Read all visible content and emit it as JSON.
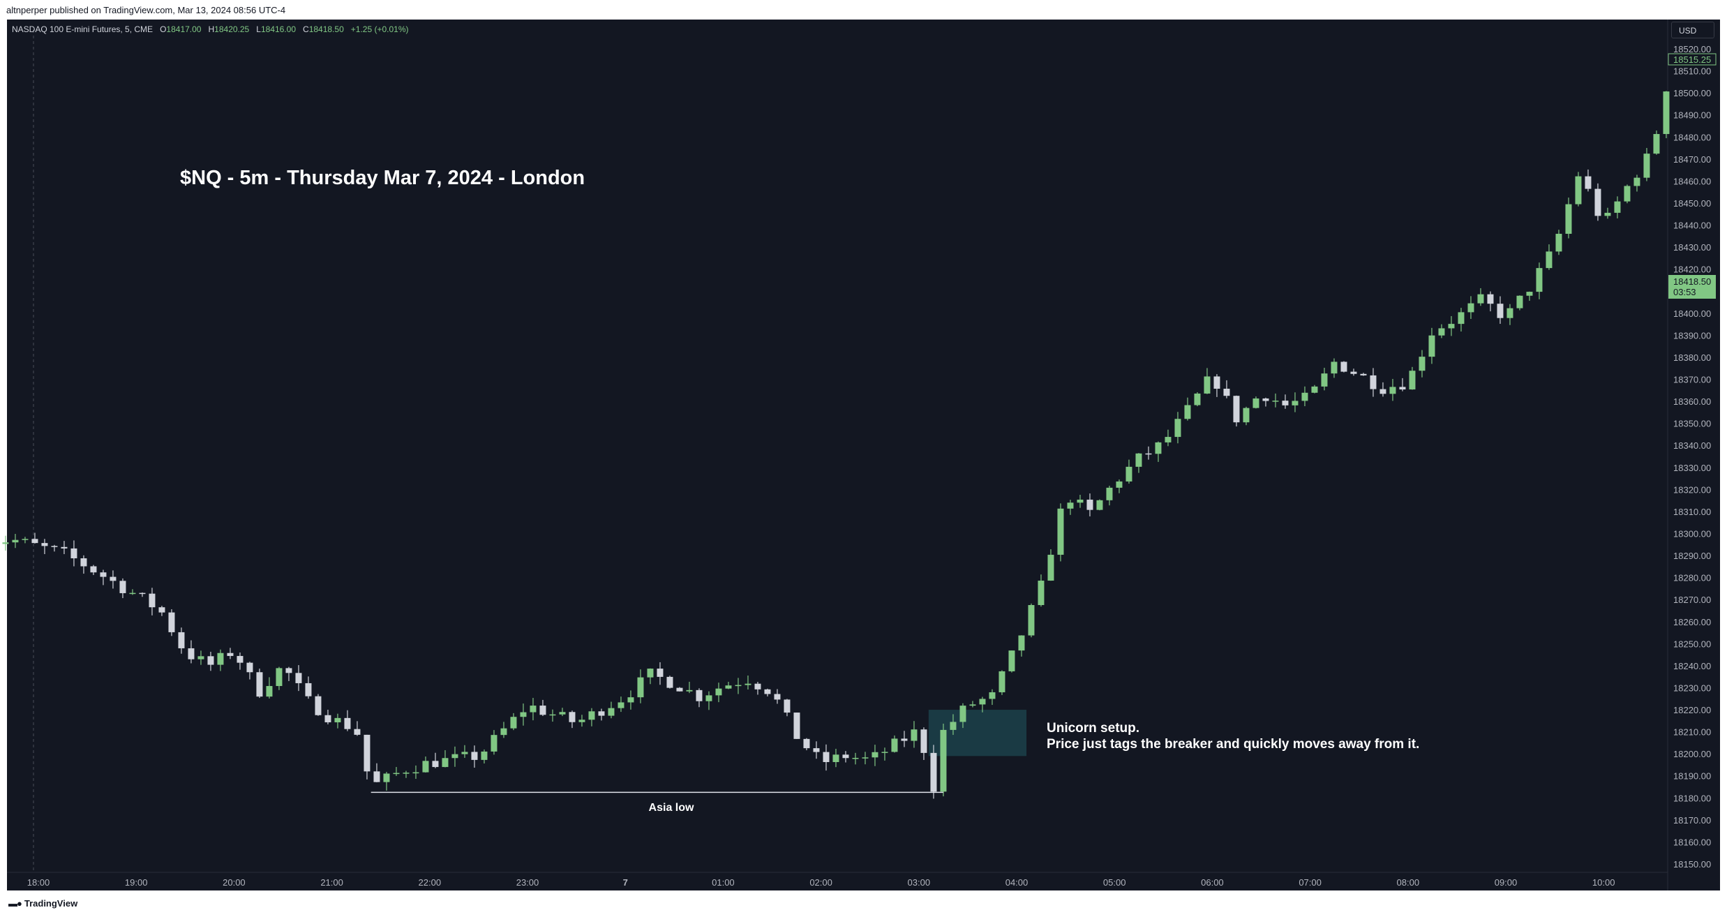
{
  "header": {
    "published": "altnperper published on TradingView.com, Mar 13, 2024 08:56 UTC-4"
  },
  "legend": {
    "symbol": "NASDAQ 100 E-mini Futures, 5, CME",
    "o_label": "O",
    "o_value": "18417.00",
    "h_label": "H",
    "h_value": "18420.25",
    "l_label": "L",
    "l_value": "18416.00",
    "c_label": "C",
    "c_value": "18418.50",
    "change": "+1.25 (+0.01%)"
  },
  "currency": "USD",
  "footer": {
    "brand": "TradingView"
  },
  "colors": {
    "background": "#131722",
    "up": "#81c784",
    "down": "#d1d4dc",
    "fvg": "#1a3a44",
    "last_price": "#81c784"
  },
  "chart_data": {
    "type": "candlestick",
    "title": "$NQ - 5m - Thursday Mar 7, 2024 - London",
    "timeframe": "5m",
    "x_ticks": [
      "18:00",
      "19:00",
      "20:00",
      "21:00",
      "22:00",
      "23:00",
      "7",
      "01:00",
      "02:00",
      "03:00",
      "04:00",
      "05:00",
      "06:00",
      "07:00",
      "08:00",
      "09:00",
      "10:00"
    ],
    "y_ticks": [
      18150,
      18160,
      18170,
      18180,
      18190,
      18200,
      18210,
      18220,
      18230,
      18240,
      18250,
      18260,
      18270,
      18280,
      18290,
      18300,
      18310,
      18320,
      18330,
      18340,
      18350,
      18360,
      18370,
      18380,
      18390,
      18400,
      18410,
      18420,
      18430,
      18440,
      18450,
      18460,
      18470,
      18480,
      18490,
      18500,
      18510,
      18520
    ],
    "ylim": [
      18143,
      18525
    ],
    "y_tick_labels": [
      "18150.00",
      "18160.00",
      "18170.00",
      "18180.00",
      "18190.00",
      "18200.00",
      "18210.00",
      "18220.00",
      "18230.00",
      "18240.00",
      "18250.00",
      "18260.00",
      "18270.00",
      "18280.00",
      "18290.00",
      "18300.00",
      "18310.00",
      "18320.00",
      "18330.00",
      "18340.00",
      "18350.00",
      "18360.00",
      "18370.00",
      "18380.00",
      "18390.00",
      "18400.00",
      "18410.00",
      "18420.00",
      "18430.00",
      "18440.00",
      "18450.00",
      "18460.00",
      "18470.00",
      "18480.00",
      "18490.00",
      "18500.00",
      "18510.00",
      "18520.00"
    ],
    "price_labels": {
      "high_value": "18515.25",
      "last_price": "18418.50",
      "countdown": "03:53"
    },
    "levels": [
      {
        "name": "Asia low",
        "price": 18182.5,
        "from_hour": 21.4,
        "to_hour": 3.25
      }
    ],
    "zones": [
      {
        "name": "breaker",
        "top": 18220,
        "bottom": 18199,
        "from_hour": 3.1,
        "to_hour": 4.1
      }
    ],
    "annotations": [
      "Unicorn setup.",
      "Price just tags the breaker and quickly moves away from it."
    ],
    "series": [
      {
        "name": "",
        "kind": "close",
        "x_hours": [
          17.75,
          18.25,
          18.5,
          19.0,
          19.25,
          19.5,
          19.75,
          20.0,
          20.25,
          20.5,
          20.75,
          21.0,
          21.25,
          21.4,
          21.75,
          22.0,
          22.5,
          23.0,
          23.5,
          0.0,
          0.25,
          0.5,
          0.75,
          1.0,
          1.25,
          1.5,
          1.75,
          2.0,
          2.25,
          2.5,
          2.75,
          3.0,
          3.15,
          3.25,
          3.5,
          3.75,
          4.0,
          4.25,
          4.5,
          4.75,
          5.0,
          5.25,
          5.5,
          5.75,
          6.0,
          6.25,
          6.5,
          6.75,
          7.0,
          7.25,
          7.5,
          7.75,
          8.0,
          8.25,
          8.5,
          8.75,
          9.0,
          9.25,
          9.5,
          9.75,
          10.0,
          10.25,
          10.5,
          10.7
        ],
        "values": [
          18297,
          18291,
          18285,
          18272,
          18265,
          18246,
          18240,
          18247,
          18228,
          18240,
          18224,
          18216,
          18211,
          18185,
          18193,
          18196,
          18199,
          18222,
          18214,
          18226,
          18236,
          18232,
          18226,
          18231,
          18234,
          18228,
          18208,
          18196,
          18199,
          18197,
          18204,
          18211,
          18185,
          18210,
          18222,
          18226,
          18249,
          18276,
          18318,
          18309,
          18323,
          18334,
          18341,
          18356,
          18372,
          18352,
          18364,
          18358,
          18362,
          18378,
          18372,
          18366,
          18369,
          18392,
          18398,
          18406,
          18398,
          18412,
          18430,
          18464,
          18440,
          18458,
          18474,
          18515
        ]
      }
    ]
  }
}
